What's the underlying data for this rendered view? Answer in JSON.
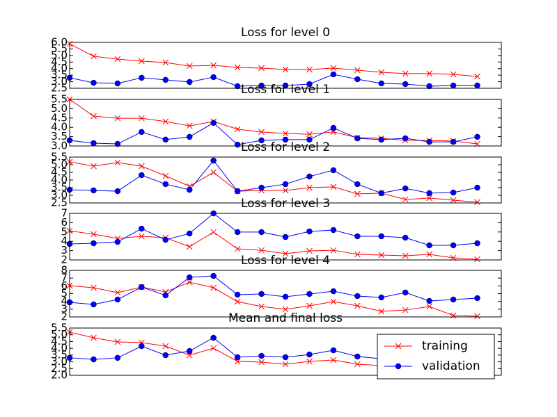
{
  "chart_data": [
    {
      "type": "line",
      "title": "Loss for level 0",
      "x": [
        0,
        1,
        2,
        3,
        4,
        5,
        6,
        7,
        8,
        9,
        10,
        11,
        12,
        13,
        14,
        15,
        16,
        17
      ],
      "xlim": [
        0,
        18
      ],
      "ylim": [
        2.5,
        6.0
      ],
      "yticks": [
        2.5,
        {
          "value": 3,
          "label": "3.0"
        },
        3.5,
        {
          "value": 4,
          "label": "4.0"
        },
        4.5,
        {
          "value": 5,
          "label": "5.0"
        },
        5.5,
        {
          "value": 6,
          "label": "6.0"
        }
      ],
      "series": [
        {
          "color": "#ff0000",
          "marker": "x",
          "values": [
            5.89,
            4.94,
            4.73,
            4.57,
            4.46,
            4.2,
            4.25,
            4.09,
            4.04,
            3.93,
            3.93,
            4.04,
            3.88,
            3.72,
            3.62,
            3.62,
            3.56,
            3.4
          ]
        },
        {
          "color": "#0000ff",
          "marker": "o",
          "values": [
            3.3,
            2.92,
            2.87,
            3.3,
            3.14,
            2.98,
            3.35,
            2.66,
            2.71,
            2.71,
            2.82,
            3.56,
            3.19,
            2.87,
            2.82,
            2.66,
            2.71,
            2.71
          ]
        }
      ]
    },
    {
      "type": "line",
      "title": "Loss for level 1",
      "x": [
        0,
        1,
        2,
        3,
        4,
        5,
        6,
        7,
        8,
        9,
        10,
        11,
        12,
        13,
        14,
        15,
        16,
        17
      ],
      "xlim": [
        0,
        18
      ],
      "ylim": [
        3.0,
        5.5
      ],
      "yticks": [
        {
          "value": 3,
          "label": "3.0"
        },
        3.5,
        {
          "value": 4,
          "label": "4.0"
        },
        4.5,
        {
          "value": 5,
          "label": "5.0"
        },
        5.5
      ],
      "series": [
        {
          "color": "#ff0000",
          "marker": "x",
          "values": [
            5.5,
            4.6,
            4.49,
            4.49,
            4.31,
            4.08,
            4.31,
            3.9,
            3.75,
            3.67,
            3.63,
            3.75,
            3.45,
            3.41,
            3.3,
            3.3,
            3.26,
            3.11
          ]
        },
        {
          "color": "#0000ff",
          "marker": "o",
          "values": [
            3.3,
            3.15,
            3.11,
            3.75,
            3.34,
            3.49,
            4.24,
            3.07,
            3.3,
            3.34,
            3.34,
            3.97,
            3.41,
            3.34,
            3.41,
            3.22,
            3.22,
            3.49
          ]
        }
      ]
    },
    {
      "type": "line",
      "title": "Loss for level 2",
      "x": [
        0,
        1,
        2,
        3,
        4,
        5,
        6,
        7,
        8,
        9,
        10,
        11,
        12,
        13,
        14,
        15,
        16,
        17
      ],
      "xlim": [
        0,
        18
      ],
      "ylim": [
        2.5,
        5.5
      ],
      "yticks": [
        2.5,
        {
          "value": 3,
          "label": "3.0"
        },
        3.5,
        {
          "value": 4,
          "label": "4.0"
        },
        4.5,
        {
          "value": 5,
          "label": "5.0"
        },
        5.5
      ],
      "series": [
        {
          "color": "#ff0000",
          "marker": "x",
          "values": [
            5.18,
            4.91,
            5.14,
            4.91,
            4.27,
            3.59,
            4.5,
            3.27,
            3.32,
            3.32,
            3.5,
            3.55,
            3.09,
            3.14,
            2.73,
            2.82,
            2.68,
            2.55
          ]
        },
        {
          "color": "#0000ff",
          "marker": "o",
          "values": [
            3.36,
            3.32,
            3.27,
            4.32,
            3.73,
            3.36,
            5.27,
            3.27,
            3.5,
            3.73,
            4.23,
            4.64,
            3.73,
            3.14,
            3.45,
            3.14,
            3.18,
            3.5
          ]
        }
      ]
    },
    {
      "type": "line",
      "title": "Loss for level 3",
      "x": [
        0,
        1,
        2,
        3,
        4,
        5,
        6,
        7,
        8,
        9,
        10,
        11,
        12,
        13,
        14,
        15,
        16,
        17
      ],
      "xlim": [
        0,
        18
      ],
      "ylim": [
        2,
        7
      ],
      "yticks": [
        2,
        3,
        4,
        5,
        6,
        7
      ],
      "series": [
        {
          "color": "#ff0000",
          "marker": "x",
          "values": [
            5.13,
            4.76,
            4.31,
            4.54,
            4.39,
            3.42,
            4.99,
            3.19,
            3.04,
            2.67,
            2.97,
            3.04,
            2.6,
            2.52,
            2.45,
            2.6,
            2.22,
            2.07
          ]
        },
        {
          "color": "#0000ff",
          "marker": "o",
          "values": [
            3.72,
            3.79,
            3.94,
            5.36,
            4.16,
            4.84,
            7.0,
            4.99,
            4.99,
            4.46,
            5.06,
            5.21,
            4.54,
            4.54,
            4.39,
            3.57,
            3.57,
            3.79
          ]
        }
      ]
    },
    {
      "type": "line",
      "title": "Loss for level 4",
      "x": [
        0,
        1,
        2,
        3,
        4,
        5,
        6,
        7,
        8,
        9,
        10,
        11,
        12,
        13,
        14,
        15,
        16,
        17
      ],
      "xlim": [
        0,
        18
      ],
      "ylim": [
        2,
        8
      ],
      "yticks": [
        2,
        3,
        4,
        5,
        6,
        7,
        8
      ],
      "series": [
        {
          "color": "#ff0000",
          "marker": "x",
          "values": [
            6.03,
            5.76,
            5.14,
            5.85,
            5.22,
            6.48,
            5.76,
            3.97,
            3.34,
            2.98,
            3.43,
            3.97,
            3.43,
            2.72,
            2.89,
            3.34,
            2.18,
            2.09
          ]
        },
        {
          "color": "#0000ff",
          "marker": "o",
          "values": [
            3.88,
            3.61,
            4.24,
            5.85,
            4.78,
            7.1,
            7.28,
            4.87,
            4.96,
            4.6,
            4.96,
            5.31,
            4.69,
            4.51,
            5.14,
            4.06,
            4.24,
            4.42
          ]
        }
      ]
    },
    {
      "type": "line",
      "title": "Mean and final loss",
      "x": [
        0,
        1,
        2,
        3,
        4,
        5,
        6,
        7,
        8,
        9,
        10,
        11,
        12,
        13,
        14,
        15,
        16,
        17
      ],
      "xlim": [
        0,
        18
      ],
      "ylim": [
        2.0,
        5.5
      ],
      "yticks": [
        {
          "value": 2,
          "label": "2.0"
        },
        2.5,
        {
          "value": 3,
          "label": "3.0"
        },
        3.5,
        {
          "value": 4,
          "label": "4.0"
        },
        4.5,
        {
          "value": 5,
          "label": "5.0"
        },
        5.5
      ],
      "legend": "lower right",
      "series": [
        {
          "name": "training",
          "color": "#ff0000",
          "marker": "x",
          "values": [
            5.19,
            4.78,
            4.47,
            4.42,
            4.16,
            3.49,
            4.01,
            3.03,
            2.98,
            2.82,
            3.03,
            3.13,
            2.82,
            2.72,
            2.75,
            2.85,
            2.6,
            2.55
          ]
        },
        {
          "name": "validation",
          "color": "#0000ff",
          "marker": "o",
          "values": [
            3.29,
            3.18,
            3.29,
            4.16,
            3.49,
            3.8,
            4.78,
            3.34,
            3.44,
            3.34,
            3.54,
            3.85,
            3.39,
            3.23,
            3.3,
            3.2,
            3.1,
            3.3
          ]
        }
      ]
    }
  ]
}
